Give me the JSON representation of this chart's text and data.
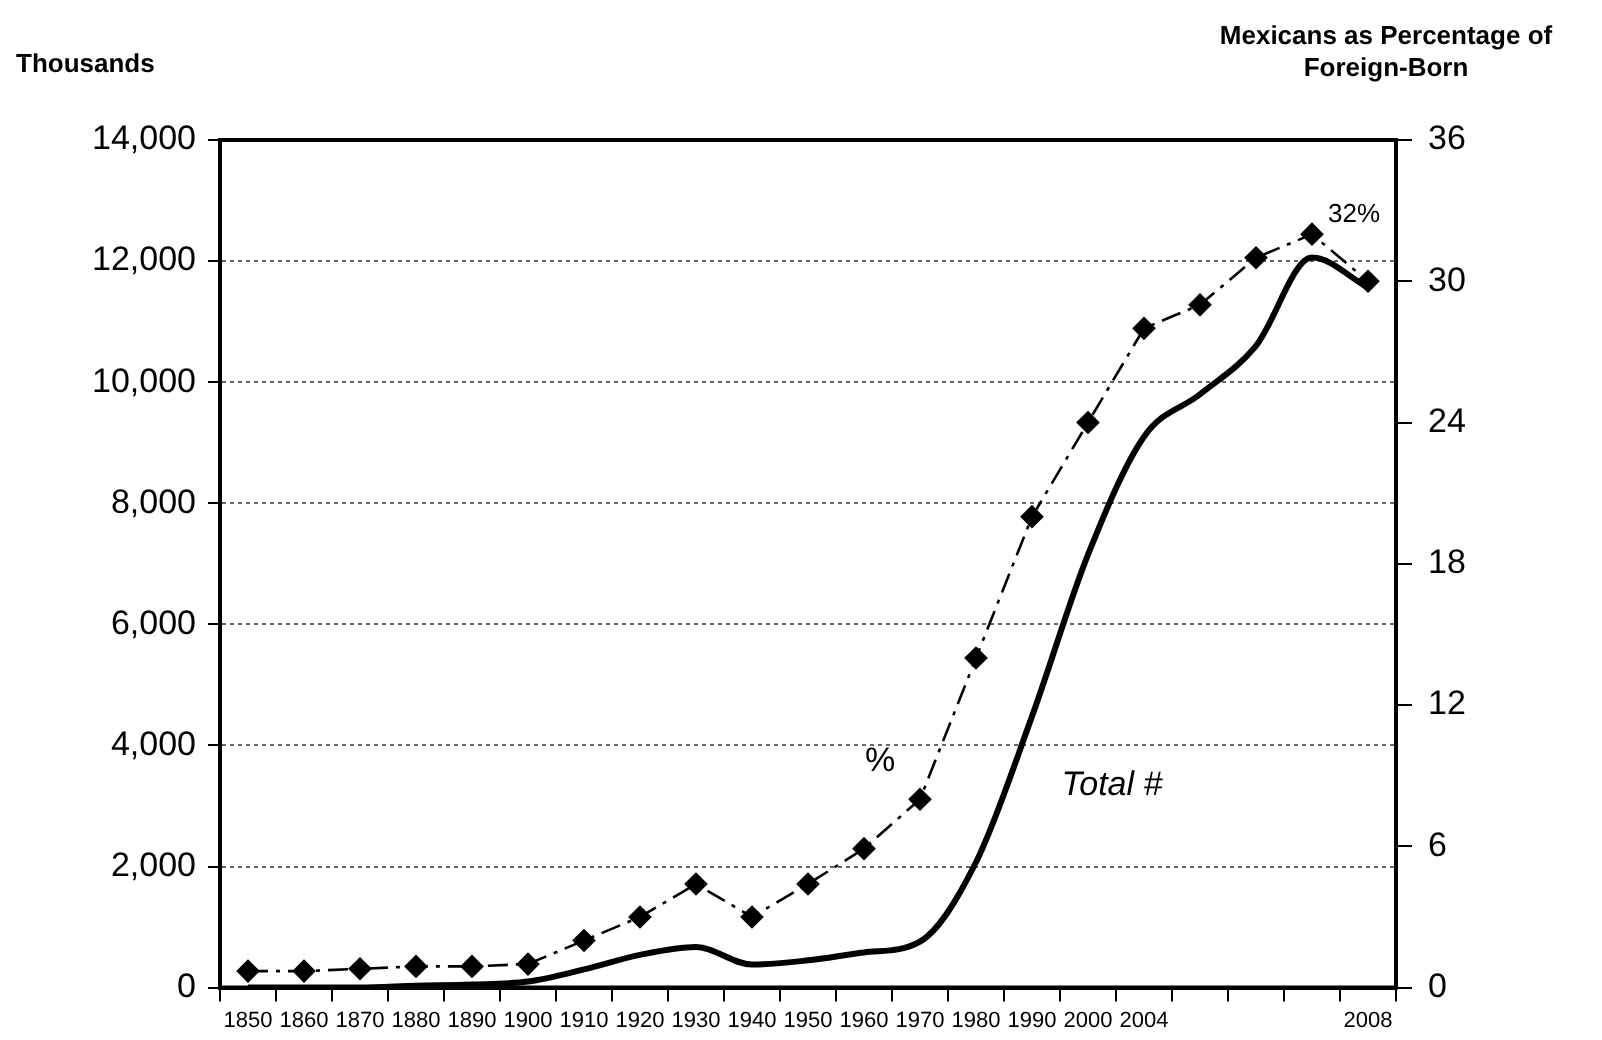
{
  "chart_data": {
    "type": "line",
    "ylabel": "Thousands",
    "y2label": "Mexicans as Percentage of Foreign-Born",
    "categories": [
      "1850",
      "1860",
      "1870",
      "1880",
      "1890",
      "1900",
      "1910",
      "1920",
      "1930",
      "1940",
      "1950",
      "1960",
      "1970",
      "1980",
      "1990",
      "2000",
      "2004",
      null,
      null,
      null,
      "2008"
    ],
    "series": [
      {
        "name": "Total #",
        "color": "#000000",
        "marker": "none",
        "line_style": "solid",
        "values": [
          0,
          0,
          0,
          30,
          50,
          100,
          300,
          540,
          670,
          380,
          450,
          580,
          760,
          2070,
          4480,
          7150,
          9100,
          9800,
          10600,
          12060,
          11560
        ]
      },
      {
        "name": "%",
        "color": "#000000",
        "marker": "diamond",
        "line_style": "dashed",
        "axis": "y2",
        "values": [
          0.7,
          0.7,
          0.8,
          0.9,
          0.9,
          1.0,
          2.0,
          3.0,
          4.4,
          3.0,
          4.4,
          5.9,
          8.0,
          14.0,
          20.0,
          24.0,
          28.0,
          29.0,
          31.0,
          32,
          30
        ],
        "value_labels": [
          null,
          null,
          null,
          null,
          null,
          null,
          null,
          null,
          null,
          null,
          null,
          null,
          null,
          null,
          null,
          null,
          null,
          null,
          null,
          "32%",
          null
        ]
      }
    ],
    "ylim": [
      0,
      14000
    ],
    "yticks": [
      0,
      {
        "value": 2000,
        "label": "2,000"
      },
      {
        "value": 4000,
        "label": "4,000"
      },
      {
        "value": 6000,
        "label": "6,000"
      },
      {
        "value": 8000,
        "label": "8,000"
      },
      {
        "value": 10000,
        "label": "10,000"
      },
      {
        "value": 12000,
        "label": "12,000"
      },
      {
        "value": 14000,
        "label": "14,000"
      }
    ],
    "y2lim": [
      0,
      36
    ],
    "y2ticks": [
      0,
      6,
      12,
      18,
      24,
      30,
      36
    ],
    "grid": "y",
    "legend": false
  }
}
